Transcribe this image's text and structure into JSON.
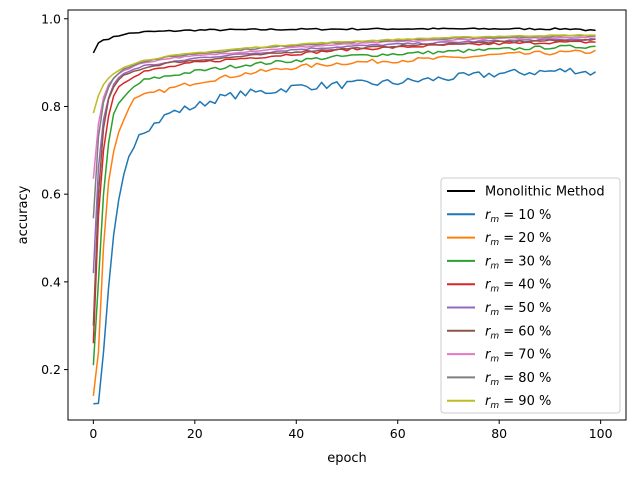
{
  "chart_data": {
    "type": "line",
    "title": "",
    "xlabel": "epoch",
    "ylabel": "accuracy",
    "xlim": [
      -5,
      105
    ],
    "ylim": [
      0.085,
      1.02
    ],
    "xticks": [
      0,
      20,
      40,
      60,
      80,
      100
    ],
    "yticks": [
      0.2,
      0.4,
      0.6,
      0.8,
      1.0
    ],
    "xtick_labels": [
      "0",
      "20",
      "40",
      "60",
      "80",
      "100"
    ],
    "ytick_labels": [
      "0.2",
      "0.4",
      "0.6",
      "0.8",
      "1.0"
    ],
    "grid": false,
    "legend_position": "lower right",
    "epochs": 100,
    "series": [
      {
        "name": "Monolithic Method",
        "label_prefix": "",
        "label_sub": "",
        "label_suffix": "",
        "color": "#000000",
        "anchors": [
          [
            0,
            0.922
          ],
          [
            1,
            0.945
          ],
          [
            2,
            0.952
          ],
          [
            4,
            0.958
          ],
          [
            6,
            0.965
          ],
          [
            10,
            0.97
          ],
          [
            20,
            0.974
          ],
          [
            40,
            0.976
          ],
          [
            60,
            0.977
          ],
          [
            95,
            0.977
          ],
          [
            99,
            0.972
          ]
        ],
        "noise": 0.002
      },
      {
        "name": "r_m = 10 %",
        "label_prefix": "r",
        "label_sub": "m",
        "label_suffix": " = 10 %",
        "color": "#1f77b4",
        "anchors": [
          [
            0,
            0.122
          ],
          [
            1,
            0.123
          ],
          [
            2,
            0.24
          ],
          [
            3,
            0.38
          ],
          [
            4,
            0.5
          ],
          [
            5,
            0.58
          ],
          [
            6,
            0.64
          ],
          [
            7,
            0.69
          ],
          [
            9,
            0.74
          ],
          [
            12,
            0.76
          ],
          [
            15,
            0.785
          ],
          [
            20,
            0.8
          ],
          [
            25,
            0.82
          ],
          [
            30,
            0.83
          ],
          [
            35,
            0.835
          ],
          [
            40,
            0.845
          ],
          [
            50,
            0.85
          ],
          [
            60,
            0.855
          ],
          [
            70,
            0.865
          ],
          [
            80,
            0.875
          ],
          [
            90,
            0.88
          ],
          [
            95,
            0.883
          ],
          [
            99,
            0.875
          ]
        ],
        "noise": 0.009
      },
      {
        "name": "r_m = 20 %",
        "label_prefix": "r",
        "label_sub": "m",
        "label_suffix": " = 20 %",
        "color": "#ff7f0e",
        "anchors": [
          [
            0,
            0.14
          ],
          [
            1,
            0.24
          ],
          [
            2,
            0.48
          ],
          [
            3,
            0.63
          ],
          [
            4,
            0.7
          ],
          [
            5,
            0.74
          ],
          [
            6,
            0.77
          ],
          [
            7,
            0.8
          ],
          [
            8,
            0.815
          ],
          [
            10,
            0.825
          ],
          [
            15,
            0.84
          ],
          [
            20,
            0.855
          ],
          [
            25,
            0.865
          ],
          [
            30,
            0.875
          ],
          [
            40,
            0.89
          ],
          [
            50,
            0.9
          ],
          [
            60,
            0.905
          ],
          [
            70,
            0.91
          ],
          [
            80,
            0.918
          ],
          [
            90,
            0.922
          ],
          [
            99,
            0.925
          ]
        ],
        "noise": 0.005
      },
      {
        "name": "r_m = 30 %",
        "label_prefix": "r",
        "label_sub": "m",
        "label_suffix": " = 30 %",
        "color": "#2ca02c",
        "anchors": [
          [
            0,
            0.21
          ],
          [
            1,
            0.4
          ],
          [
            2,
            0.6
          ],
          [
            3,
            0.72
          ],
          [
            4,
            0.78
          ],
          [
            5,
            0.805
          ],
          [
            6,
            0.82
          ],
          [
            8,
            0.845
          ],
          [
            10,
            0.86
          ],
          [
            15,
            0.87
          ],
          [
            20,
            0.88
          ],
          [
            30,
            0.895
          ],
          [
            40,
            0.905
          ],
          [
            50,
            0.915
          ],
          [
            60,
            0.92
          ],
          [
            70,
            0.925
          ],
          [
            80,
            0.93
          ],
          [
            90,
            0.935
          ],
          [
            99,
            0.937
          ]
        ],
        "noise": 0.004
      },
      {
        "name": "r_m = 40 %",
        "label_prefix": "r",
        "label_sub": "m",
        "label_suffix": " = 40 %",
        "color": "#d62728",
        "anchors": [
          [
            0,
            0.26
          ],
          [
            1,
            0.55
          ],
          [
            2,
            0.7
          ],
          [
            3,
            0.78
          ],
          [
            4,
            0.825
          ],
          [
            5,
            0.845
          ],
          [
            6,
            0.855
          ],
          [
            8,
            0.87
          ],
          [
            10,
            0.88
          ],
          [
            15,
            0.89
          ],
          [
            20,
            0.9
          ],
          [
            30,
            0.91
          ],
          [
            40,
            0.92
          ],
          [
            50,
            0.93
          ],
          [
            60,
            0.935
          ],
          [
            70,
            0.94
          ],
          [
            80,
            0.943
          ],
          [
            90,
            0.946
          ],
          [
            99,
            0.947
          ]
        ],
        "noise": 0.003
      },
      {
        "name": "r_m = 50 %",
        "label_prefix": "r",
        "label_sub": "m",
        "label_suffix": " = 50 %",
        "color": "#9467bd",
        "anchors": [
          [
            0,
            0.42
          ],
          [
            1,
            0.66
          ],
          [
            2,
            0.77
          ],
          [
            3,
            0.82
          ],
          [
            4,
            0.85
          ],
          [
            5,
            0.865
          ],
          [
            6,
            0.875
          ],
          [
            8,
            0.885
          ],
          [
            10,
            0.893
          ],
          [
            15,
            0.9
          ],
          [
            20,
            0.91
          ],
          [
            30,
            0.92
          ],
          [
            40,
            0.93
          ],
          [
            50,
            0.937
          ],
          [
            60,
            0.942
          ],
          [
            70,
            0.946
          ],
          [
            80,
            0.95
          ],
          [
            90,
            0.952
          ],
          [
            99,
            0.953
          ]
        ],
        "noise": 0.002
      },
      {
        "name": "r_m = 60 %",
        "label_prefix": "r",
        "label_sub": "m",
        "label_suffix": " = 60 %",
        "color": "#8c564b",
        "anchors": [
          [
            0,
            0.3
          ],
          [
            1,
            0.6
          ],
          [
            2,
            0.75
          ],
          [
            3,
            0.815
          ],
          [
            4,
            0.845
          ],
          [
            5,
            0.86
          ],
          [
            6,
            0.87
          ],
          [
            8,
            0.88
          ],
          [
            10,
            0.888
          ],
          [
            15,
            0.9
          ],
          [
            20,
            0.905
          ],
          [
            30,
            0.915
          ],
          [
            40,
            0.925
          ],
          [
            50,
            0.932
          ],
          [
            60,
            0.938
          ],
          [
            70,
            0.943
          ],
          [
            80,
            0.947
          ],
          [
            90,
            0.95
          ],
          [
            99,
            0.952
          ]
        ],
        "noise": 0.002
      },
      {
        "name": "r_m = 70 %",
        "label_prefix": "r",
        "label_sub": "m",
        "label_suffix": " = 70 %",
        "color": "#e377c2",
        "anchors": [
          [
            0,
            0.635
          ],
          [
            1,
            0.76
          ],
          [
            2,
            0.82
          ],
          [
            3,
            0.85
          ],
          [
            4,
            0.865
          ],
          [
            5,
            0.875
          ],
          [
            6,
            0.882
          ],
          [
            8,
            0.892
          ],
          [
            10,
            0.9
          ],
          [
            15,
            0.91
          ],
          [
            20,
            0.915
          ],
          [
            30,
            0.925
          ],
          [
            40,
            0.935
          ],
          [
            50,
            0.942
          ],
          [
            60,
            0.948
          ],
          [
            70,
            0.952
          ],
          [
            80,
            0.955
          ],
          [
            90,
            0.957
          ],
          [
            99,
            0.958
          ]
        ],
        "noise": 0.0015
      },
      {
        "name": "r_m = 80 %",
        "label_prefix": "r",
        "label_sub": "m",
        "label_suffix": " = 80 %",
        "color": "#7f7f7f",
        "anchors": [
          [
            0,
            0.545
          ],
          [
            1,
            0.73
          ],
          [
            2,
            0.81
          ],
          [
            3,
            0.845
          ],
          [
            4,
            0.865
          ],
          [
            5,
            0.875
          ],
          [
            6,
            0.885
          ],
          [
            8,
            0.895
          ],
          [
            10,
            0.903
          ],
          [
            15,
            0.913
          ],
          [
            20,
            0.92
          ],
          [
            30,
            0.93
          ],
          [
            40,
            0.94
          ],
          [
            50,
            0.946
          ],
          [
            60,
            0.951
          ],
          [
            70,
            0.955
          ],
          [
            80,
            0.958
          ],
          [
            90,
            0.96
          ],
          [
            99,
            0.961
          ]
        ],
        "noise": 0.0015
      },
      {
        "name": "r_m = 90 %",
        "label_prefix": "r",
        "label_sub": "m",
        "label_suffix": " = 90 %",
        "color": "#bcbd22",
        "anchors": [
          [
            0,
            0.785
          ],
          [
            1,
            0.825
          ],
          [
            2,
            0.85
          ],
          [
            3,
            0.865
          ],
          [
            4,
            0.875
          ],
          [
            5,
            0.883
          ],
          [
            6,
            0.89
          ],
          [
            8,
            0.898
          ],
          [
            10,
            0.905
          ],
          [
            15,
            0.915
          ],
          [
            20,
            0.922
          ],
          [
            30,
            0.933
          ],
          [
            40,
            0.942
          ],
          [
            50,
            0.948
          ],
          [
            60,
            0.953
          ],
          [
            70,
            0.957
          ],
          [
            80,
            0.96
          ],
          [
            90,
            0.962
          ],
          [
            99,
            0.963
          ]
        ],
        "noise": 0.0012
      }
    ]
  }
}
